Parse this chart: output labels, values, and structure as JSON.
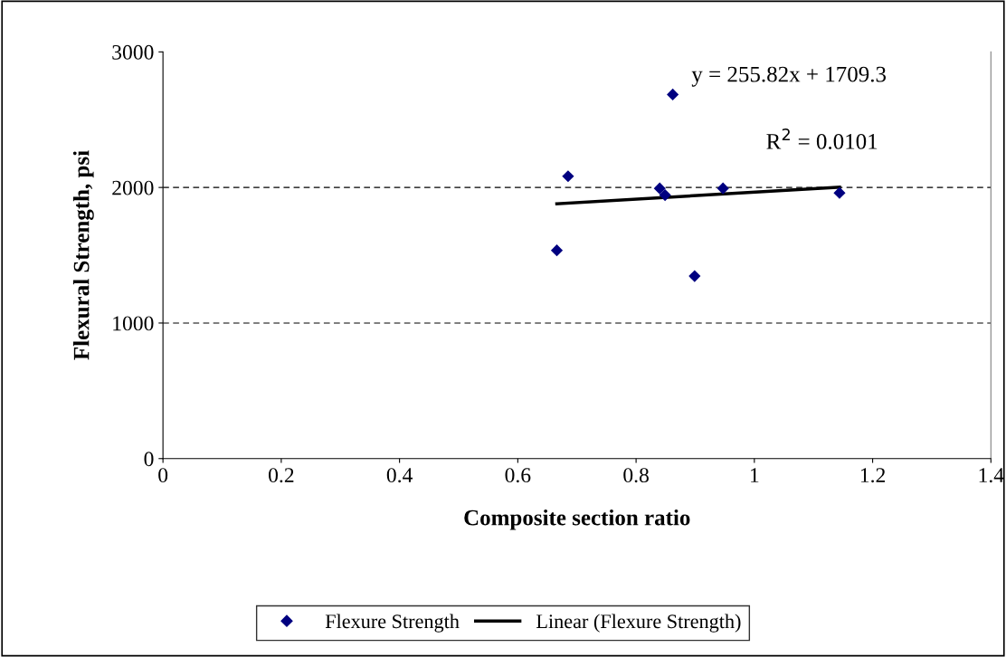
{
  "chart_data": {
    "type": "scatter",
    "xlabel": "Composite section ratio",
    "ylabel": "Flexural Strength, psi",
    "xlim": [
      0,
      1.4
    ],
    "xticks": [
      0,
      0.2,
      0.4,
      0.6,
      0.8,
      1,
      1.2,
      1.4
    ],
    "ylim": [
      0,
      3000
    ],
    "yticks": [
      0,
      1000,
      2000,
      3000
    ],
    "grid": "y",
    "legend": "bottom",
    "series": [
      {
        "name": "Flexure Strength",
        "color": "#000080",
        "marker": "diamond",
        "x": [
          0.666,
          0.685,
          0.84,
          0.849,
          0.862,
          0.899,
          0.947,
          1.144
        ],
        "values": [
          1536,
          2083,
          1993,
          1944,
          2686,
          1346,
          1993,
          1960
        ]
      },
      {
        "name": "Linear (Flexure Strength)",
        "type": "line",
        "color": "#000000",
        "line_style": "solid",
        "x": [
          0.666,
          1.144
        ],
        "values": [
          1880,
          2002
        ]
      }
    ],
    "annotations": [
      "y = 255.82x + 1709.3",
      "R$^{2}$ = 0.0101"
    ]
  }
}
